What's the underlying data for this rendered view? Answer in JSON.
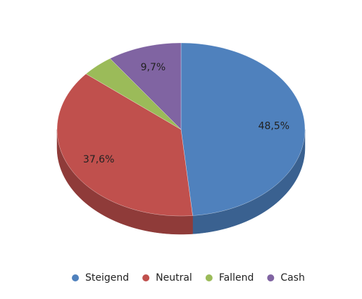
{
  "chart_data": {
    "type": "pie3d",
    "categories": [
      "Steigend",
      "Neutral",
      "Fallend",
      "Cash"
    ],
    "values": [
      48.5,
      37.6,
      4.2,
      9.7
    ],
    "value_labels": [
      "48,5%",
      "37,6%",
      null,
      "9,7%"
    ],
    "colors": [
      "#4f81bd",
      "#c0504d",
      "#9bbb59",
      "#8064a2"
    ],
    "side_colors": [
      "#3a6190",
      "#8f3b39",
      "#718c3f",
      "#5e4a7a"
    ],
    "legend": "bottom"
  }
}
